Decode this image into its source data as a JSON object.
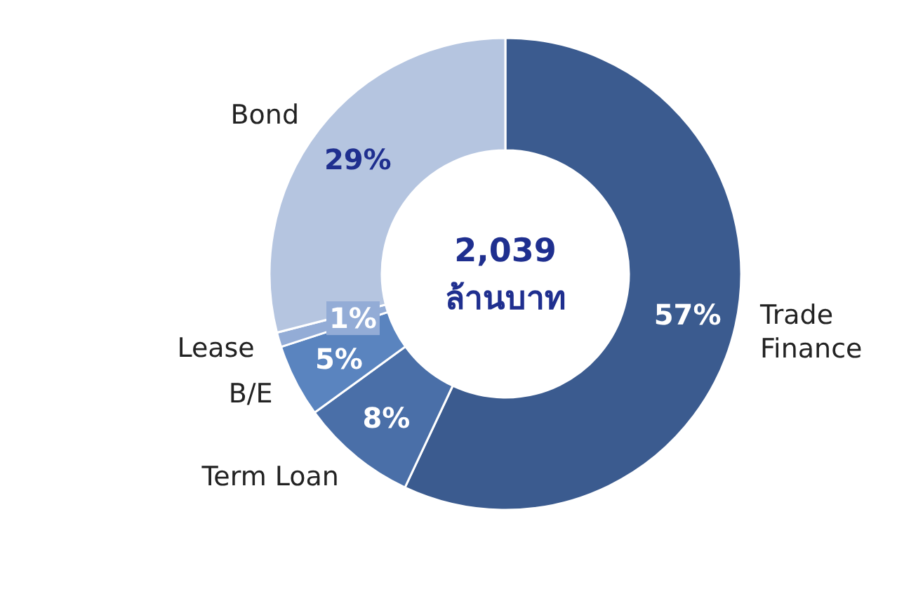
{
  "chart_data": {
    "type": "donut",
    "categories": [
      "Trade Finance",
      "Term Loan",
      "B/E",
      "Lease",
      "Bond"
    ],
    "values": [
      57,
      8,
      5,
      1,
      29
    ],
    "colors": [
      "#3b5b8f",
      "#4a6fa8",
      "#5a84bf",
      "#93acd6",
      "#b5c5e0"
    ],
    "value_labels": [
      "57%",
      "8%",
      "5%",
      "1%",
      "29%"
    ],
    "annotations": [
      "2,039",
      "ล้านบาท"
    ]
  }
}
